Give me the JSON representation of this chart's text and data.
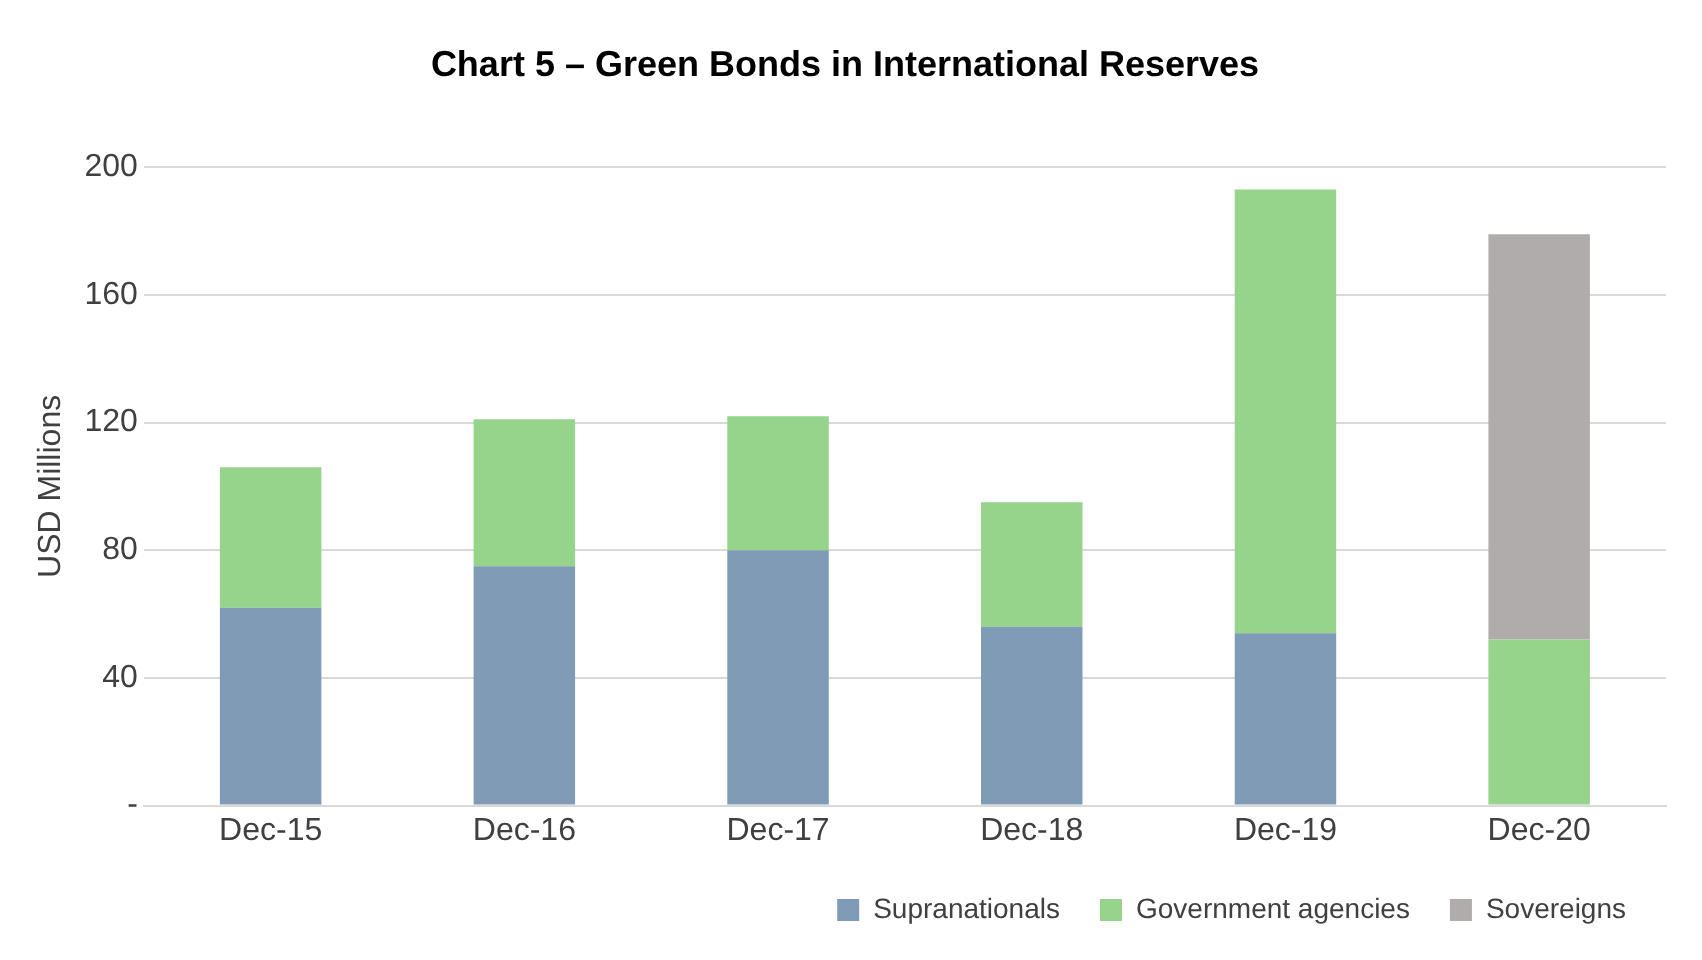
{
  "chart_data": {
    "type": "bar",
    "title": "Chart 5 – Green Bonds in International Reserves",
    "ylabel": "USD Millions",
    "categories": [
      "Dec-15",
      "Dec-16",
      "Dec-17",
      "Dec-18",
      "Dec-19",
      "Dec-20"
    ],
    "stacked": true,
    "series": [
      {
        "name": "Supranationals",
        "color": "#7f9bb6",
        "values": [
          62,
          75,
          80,
          56,
          54,
          0
        ]
      },
      {
        "name": "Government agencies",
        "color": "#95d48a",
        "values": [
          44,
          46,
          42,
          39,
          139,
          52
        ]
      },
      {
        "name": "Sovereigns",
        "color": "#b0acab",
        "values": [
          0,
          0,
          0,
          0,
          0,
          127
        ]
      }
    ],
    "ylim": [
      0,
      200
    ],
    "yticks": [
      {
        "value": 0,
        "label": "-"
      },
      40,
      80,
      120,
      160,
      200
    ],
    "grid": "y",
    "legend": "bottom right"
  }
}
